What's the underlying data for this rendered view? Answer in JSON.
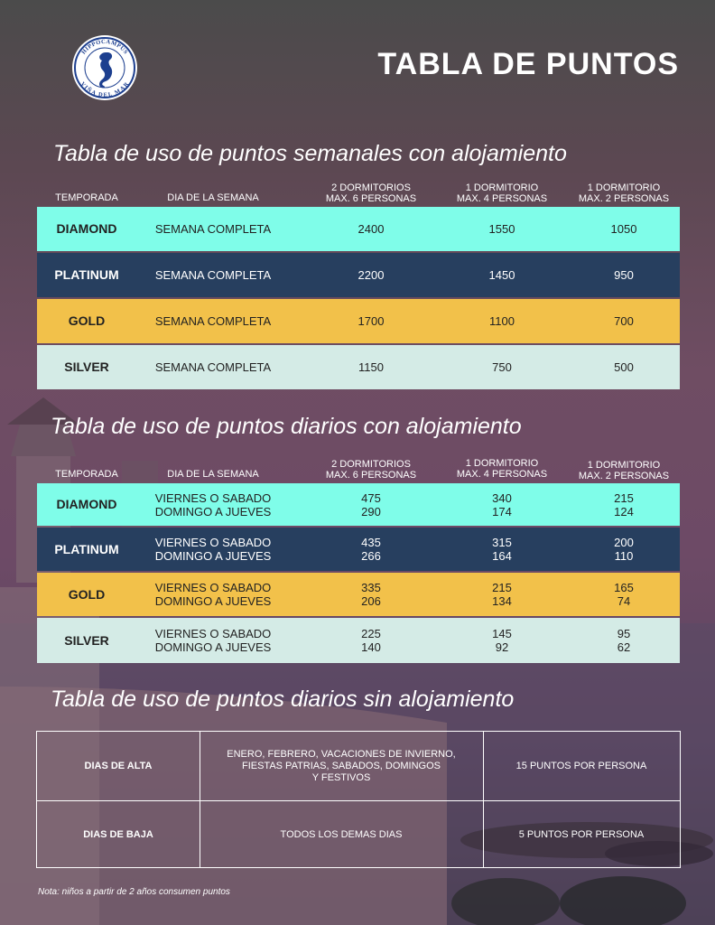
{
  "logo": {
    "top_text": "HIPPOCAMPUS",
    "bottom_text": "VIÑA DEL MAR"
  },
  "page_title": "TABLA DE PUNTOS",
  "weekly": {
    "title": "Tabla de uso de puntos semanales con alojamiento",
    "headers": {
      "season": "TEMPORADA",
      "day": "DIA DE LA SEMANA",
      "c1_line1": "2 DORMITORIOS",
      "c1_line2": "MAX. 6 PERSONAS",
      "c2_line1": "1 DORMITORIO",
      "c2_line2": "MAX. 4 PERSONAS",
      "c3_line1": "1 DORMITORIO",
      "c3_line2": "MAX. 2 PERSONAS"
    },
    "rows": [
      {
        "season": "DIAMOND",
        "day": "SEMANA COMPLETA",
        "c1": "2400",
        "c2": "1550",
        "c3": "1050"
      },
      {
        "season": "PLATINUM",
        "day": "SEMANA COMPLETA",
        "c1": "2200",
        "c2": "1450",
        "c3": "950"
      },
      {
        "season": "GOLD",
        "day": "SEMANA COMPLETA",
        "c1": "1700",
        "c2": "1100",
        "c3": "700"
      },
      {
        "season": "SILVER",
        "day": "SEMANA COMPLETA",
        "c1": "1150",
        "c2": "750",
        "c3": "500"
      }
    ]
  },
  "daily": {
    "title": "Tabla de uso de puntos diarios con alojamiento",
    "headers": {
      "season": "TEMPORADA",
      "day": "DIA DE LA SEMANA",
      "c1_line1": "2 DORMITORIOS",
      "c1_line2": "MAX. 6 PERSONAS",
      "c2_line1": "1 DORMITORIO",
      "c2_line2": "MAX. 4 PERSONAS",
      "c3_line1": "1 DORMITORIO",
      "c3_line2": "MAX. 2 PERSONAS"
    },
    "rows": [
      {
        "season": "DIAMOND",
        "day1": "VIERNES O SABADO",
        "day2": "DOMINGO A JUEVES",
        "c1a": "475",
        "c1b": "290",
        "c2a": "340",
        "c2b": "174",
        "c3a": "215",
        "c3b": "124"
      },
      {
        "season": "PLATINUM",
        "day1": "VIERNES O SABADO",
        "day2": "DOMINGO A JUEVES",
        "c1a": "435",
        "c1b": "266",
        "c2a": "315",
        "c2b": "164",
        "c3a": "200",
        "c3b": "110"
      },
      {
        "season": "GOLD",
        "day1": "VIERNES O SABADO",
        "day2": "DOMINGO A JUEVES",
        "c1a": "335",
        "c1b": "206",
        "c2a": "215",
        "c2b": "134",
        "c3a": "165",
        "c3b": "74"
      },
      {
        "season": "SILVER",
        "day1": "VIERNES O SABADO",
        "day2": "DOMINGO A JUEVES",
        "c1a": "225",
        "c1b": "140",
        "c2a": "145",
        "c2b": "92",
        "c3a": "95",
        "c3b": "62"
      }
    ]
  },
  "no_lodging": {
    "title": "Tabla de uso de puntos diarios sin alojamiento",
    "rows": [
      {
        "label": "DIAS DE ALTA",
        "desc_line1": "ENERO, FEBRERO, VACACIONES DE INVIERNO,",
        "desc_line2": "FIESTAS PATRIAS, SABADOS, DOMINGOS",
        "desc_line3": "Y FESTIVOS",
        "points": "15 PUNTOS POR PERSONA"
      },
      {
        "label": "DIAS DE BAJA",
        "desc_line1": "TODOS LOS DEMAS DIAS",
        "points": "5 PUNTOS POR PERSONA"
      }
    ]
  },
  "note": "Nota: niños a partir de 2 años consumen puntos",
  "colors": {
    "diamond": "#7ffde9",
    "platinum": "#273f5f",
    "gold": "#f2c14a",
    "silver": "#d4ebe6"
  }
}
